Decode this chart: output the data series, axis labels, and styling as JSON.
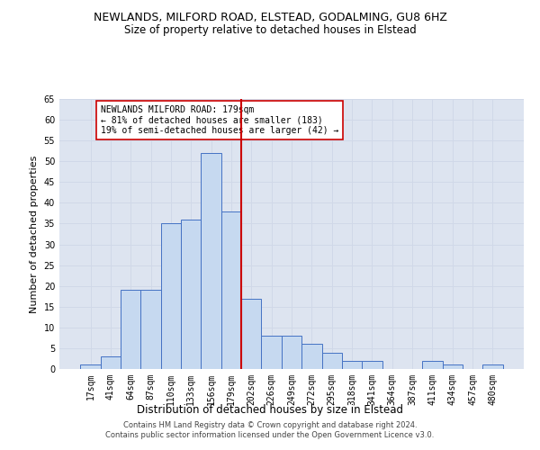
{
  "title1": "NEWLANDS, MILFORD ROAD, ELSTEAD, GODALMING, GU8 6HZ",
  "title2": "Size of property relative to detached houses in Elstead",
  "xlabel": "Distribution of detached houses by size in Elstead",
  "ylabel": "Number of detached properties",
  "categories": [
    "17sqm",
    "41sqm",
    "64sqm",
    "87sqm",
    "110sqm",
    "133sqm",
    "156sqm",
    "179sqm",
    "202sqm",
    "226sqm",
    "249sqm",
    "272sqm",
    "295sqm",
    "318sqm",
    "341sqm",
    "364sqm",
    "387sqm",
    "411sqm",
    "434sqm",
    "457sqm",
    "480sqm"
  ],
  "values": [
    1,
    3,
    19,
    19,
    35,
    36,
    52,
    38,
    17,
    8,
    8,
    6,
    4,
    2,
    2,
    0,
    0,
    2,
    1,
    0,
    1
  ],
  "bar_color": "#c6d9f0",
  "bar_edge_color": "#4472c4",
  "bar_width": 1.0,
  "vline_index": 7,
  "vline_color": "#cc0000",
  "annotation_text": "NEWLANDS MILFORD ROAD: 179sqm\n← 81% of detached houses are smaller (183)\n19% of semi-detached houses are larger (42) →",
  "annotation_box_color": "#ffffff",
  "annotation_box_edge": "#cc0000",
  "ylim": [
    0,
    65
  ],
  "yticks": [
    0,
    5,
    10,
    15,
    20,
    25,
    30,
    35,
    40,
    45,
    50,
    55,
    60,
    65
  ],
  "grid_color": "#d0d8e8",
  "background_color": "#dde4f0",
  "footer1": "Contains HM Land Registry data © Crown copyright and database right 2024.",
  "footer2": "Contains public sector information licensed under the Open Government Licence v3.0.",
  "title1_fontsize": 9,
  "title2_fontsize": 8.5,
  "xlabel_fontsize": 8.5,
  "ylabel_fontsize": 8,
  "tick_fontsize": 7,
  "annotation_fontsize": 7,
  "footer_fontsize": 6
}
